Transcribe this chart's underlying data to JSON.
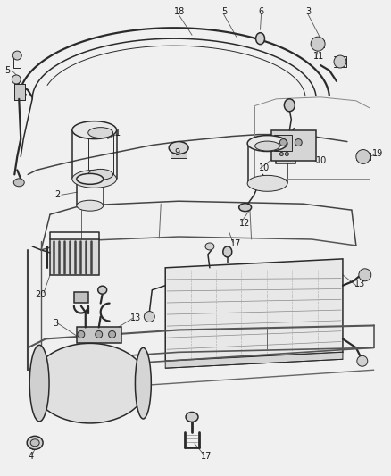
{
  "bg_color": "#f0f0f0",
  "line_color": "#2a2a2a",
  "label_color": "#1a1a1a",
  "leader_color": "#555555",
  "fig_width": 4.38,
  "fig_height": 5.33,
  "dpi": 100,
  "label_fs": 7.0,
  "lw_main": 1.1,
  "lw_thin": 0.7,
  "lw_thick": 1.6
}
